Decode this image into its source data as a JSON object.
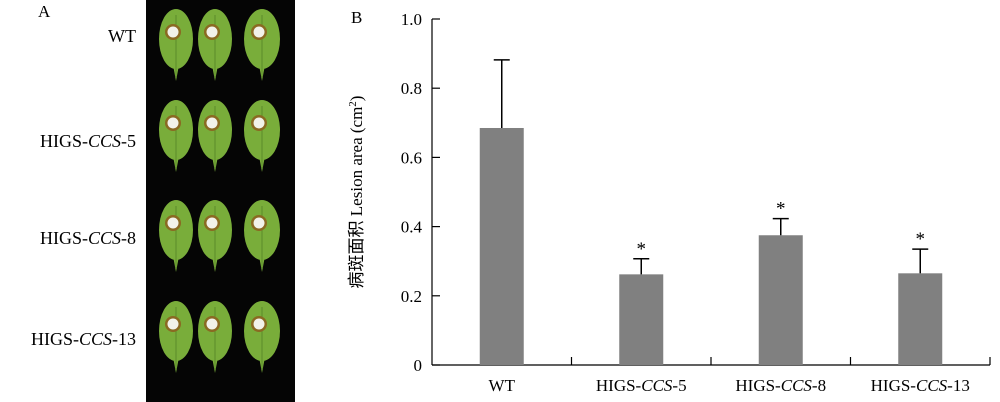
{
  "panel_a": {
    "label": "A",
    "rows": [
      {
        "prefix": "",
        "italic": "",
        "suffix": "WT"
      },
      {
        "prefix": "HIGS-",
        "italic": "CCS",
        "suffix": "-5"
      },
      {
        "prefix": "HIGS-",
        "italic": "CCS",
        "suffix": "-8"
      },
      {
        "prefix": "HIGS-",
        "italic": "CCS",
        "suffix": "-13"
      }
    ],
    "colors": {
      "background": "#050505",
      "leaf": "#79ad3a",
      "lesion": "#f2f2ea",
      "lesion_ring": "#8a6a22"
    }
  },
  "panel_b": {
    "label": "B"
  },
  "chart_data": {
    "type": "bar",
    "categories": [
      {
        "prefix": "",
        "italic": "",
        "suffix": "WT"
      },
      {
        "prefix": "HIGS-",
        "italic": "CCS",
        "suffix": "-5"
      },
      {
        "prefix": "HIGS-",
        "italic": "CCS",
        "suffix": "-8"
      },
      {
        "prefix": "HIGS-",
        "italic": "CCS",
        "suffix": "-13"
      }
    ],
    "values": [
      0.685,
      0.262,
      0.375,
      0.265
    ],
    "errors": [
      0.197,
      0.045,
      0.048,
      0.07
    ],
    "significance": [
      "",
      "*",
      "*",
      "*"
    ],
    "ylabel": "病斑面积 Lesion area (cm",
    "ylabel_sup": "2",
    "ylabel_end": ")",
    "ylim": [
      0,
      1.0
    ],
    "yticks": [
      "0",
      "0.2",
      "0.4",
      "0.6",
      "0.8",
      "1.0"
    ],
    "bar_color": "#808080"
  }
}
